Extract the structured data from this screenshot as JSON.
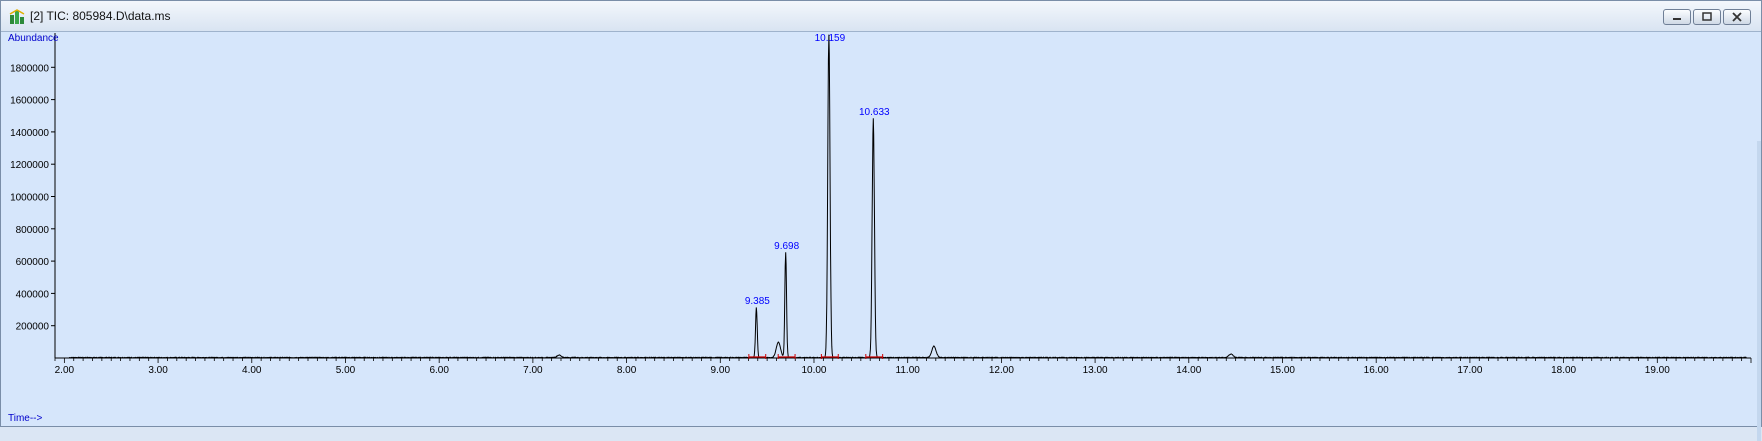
{
  "window": {
    "title": "[2] TIC: 805984.D\\data.ms",
    "app_icon": "chemstation-icon",
    "controls": [
      "minimize-icon",
      "restore-icon",
      "close-icon"
    ],
    "background_color": "#d6e6fb"
  },
  "chart_data": {
    "type": "line",
    "ylabel": "Abundance",
    "xlabel": "Time-->",
    "xlim": [
      1.9,
      20.0
    ],
    "ylim": [
      0,
      2000000
    ],
    "x_ticks": [
      2.0,
      3.0,
      4.0,
      5.0,
      6.0,
      7.0,
      8.0,
      9.0,
      10.0,
      11.0,
      12.0,
      13.0,
      14.0,
      15.0,
      16.0,
      17.0,
      18.0,
      19.0
    ],
    "x_tick_labels": [
      "2.00",
      "3.00",
      "4.00",
      "5.00",
      "6.00",
      "7.00",
      "8.00",
      "9.00",
      "10.00",
      "11.00",
      "12.00",
      "13.00",
      "14.00",
      "15.00",
      "16.00",
      "17.00",
      "18.00",
      "19.00"
    ],
    "y_ticks": [
      200000,
      400000,
      600000,
      800000,
      1000000,
      1200000,
      1400000,
      1600000,
      1800000
    ],
    "y_tick_labels": [
      "200000",
      "400000",
      "600000",
      "800000",
      "1000000",
      "1200000",
      "1400000",
      "1600000",
      "1800000"
    ],
    "peaks": [
      {
        "rt": 7.28,
        "abundance": 15000
      },
      {
        "rt": 9.385,
        "abundance": 310000,
        "label": "9.385"
      },
      {
        "rt": 9.62,
        "abundance": 95000
      },
      {
        "rt": 9.698,
        "abundance": 650000,
        "label": "9.698"
      },
      {
        "rt": 10.159,
        "abundance": 2000000,
        "label": "10.159"
      },
      {
        "rt": 10.633,
        "abundance": 1480000,
        "label": "10.633"
      },
      {
        "rt": 11.28,
        "abundance": 70000
      },
      {
        "rt": 14.45,
        "abundance": 22000
      }
    ],
    "baseline": 3000,
    "trace_color": "#000000",
    "label_color": "#0000ff",
    "integration_marker_color": "#cc0000",
    "grid": false
  }
}
